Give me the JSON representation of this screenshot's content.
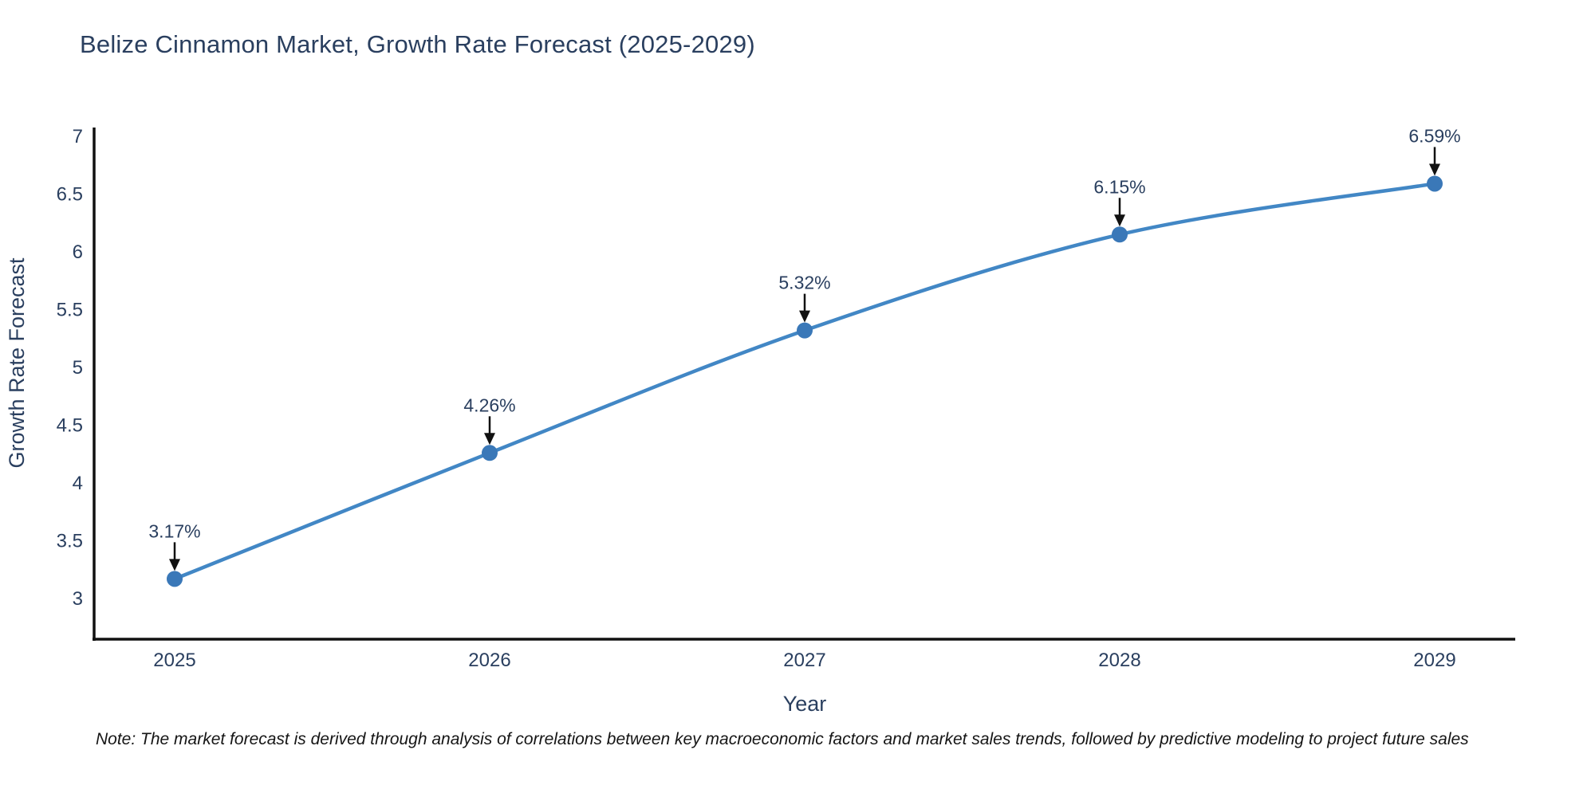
{
  "title": "Belize Cinnamon Market, Growth Rate Forecast (2025-2029)",
  "note": "Note: The market forecast is derived through analysis of correlations between key macroeconomic factors and market sales trends, followed by predictive modeling to project future sales",
  "chart_data": {
    "type": "line",
    "title": "Belize Cinnamon Market, Growth Rate Forecast (2025-2029)",
    "xlabel": "Year",
    "ylabel": "Growth Rate Forecast",
    "categories": [
      "2025",
      "2026",
      "2027",
      "2028",
      "2029"
    ],
    "series": [
      {
        "name": "Growth Rate Forecast",
        "values": [
          3.17,
          4.26,
          5.32,
          6.15,
          6.59
        ]
      }
    ],
    "point_labels": [
      "3.17%",
      "4.26%",
      "5.32%",
      "6.15%",
      "6.59%"
    ],
    "yticks": [
      3,
      3.5,
      4,
      4.5,
      5,
      5.5,
      6,
      6.5,
      7
    ],
    "ylim": [
      2.65,
      7.05
    ],
    "grid": false,
    "legend": "none",
    "line_shape": "spline",
    "annotations": "value label with downward black arrow above each data point",
    "colors": {
      "line": "#4287c5",
      "marker": "#3a78b8",
      "axis": "#111111",
      "arrow": "#111111",
      "text": "#2a3f5f",
      "note": "#151515",
      "background": "#ffffff"
    }
  }
}
